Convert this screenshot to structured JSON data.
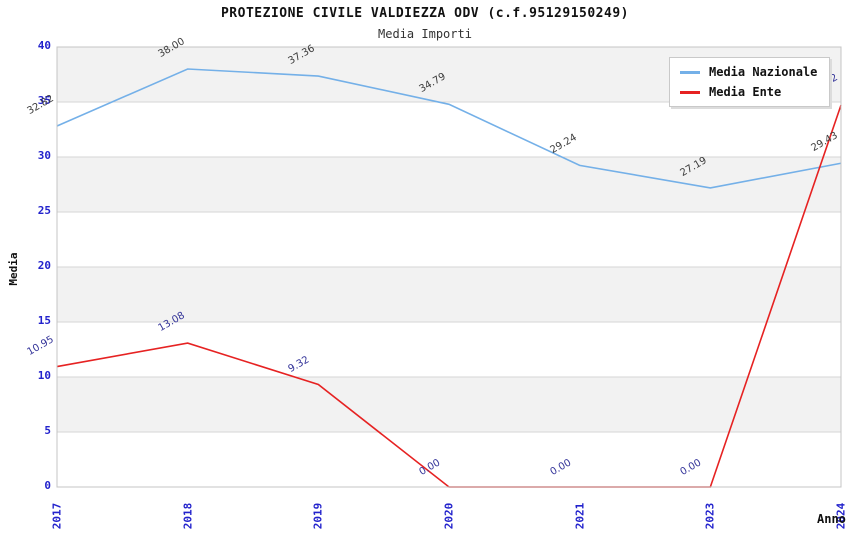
{
  "chart_data": {
    "type": "line",
    "title": "PROTEZIONE CIVILE VALDIEZZA ODV (c.f.95129150249)",
    "subtitle": "Media Importi",
    "xlabel": "Anno",
    "ylabel": "Media",
    "categories": [
      "2017",
      "2018",
      "2019",
      "2020",
      "2021",
      "2023",
      "2024"
    ],
    "ylim": [
      0,
      40
    ],
    "ytick_step": 5,
    "grid": "horizontal-bands-alternating",
    "legend_position": "top-right-inside",
    "series": [
      {
        "name": "Media Nazionale",
        "color": "#74b0e8",
        "label_color": "#3c3c3c",
        "values": [
          32.82,
          38.0,
          37.36,
          34.79,
          29.24,
          27.19,
          29.43
        ]
      },
      {
        "name": "Media Ente",
        "color": "#e62222",
        "label_color": "#333399",
        "values": [
          10.95,
          13.08,
          9.32,
          0.0,
          0.0,
          0.0,
          34.72
        ]
      }
    ],
    "colors": {
      "tick_label": "#2222cc",
      "band_fill": "#f2f2f2",
      "gridline": "#d6d6d6",
      "plot_border": "#c4c4c4",
      "title": "#111111",
      "subtitle": "#333333"
    }
  }
}
